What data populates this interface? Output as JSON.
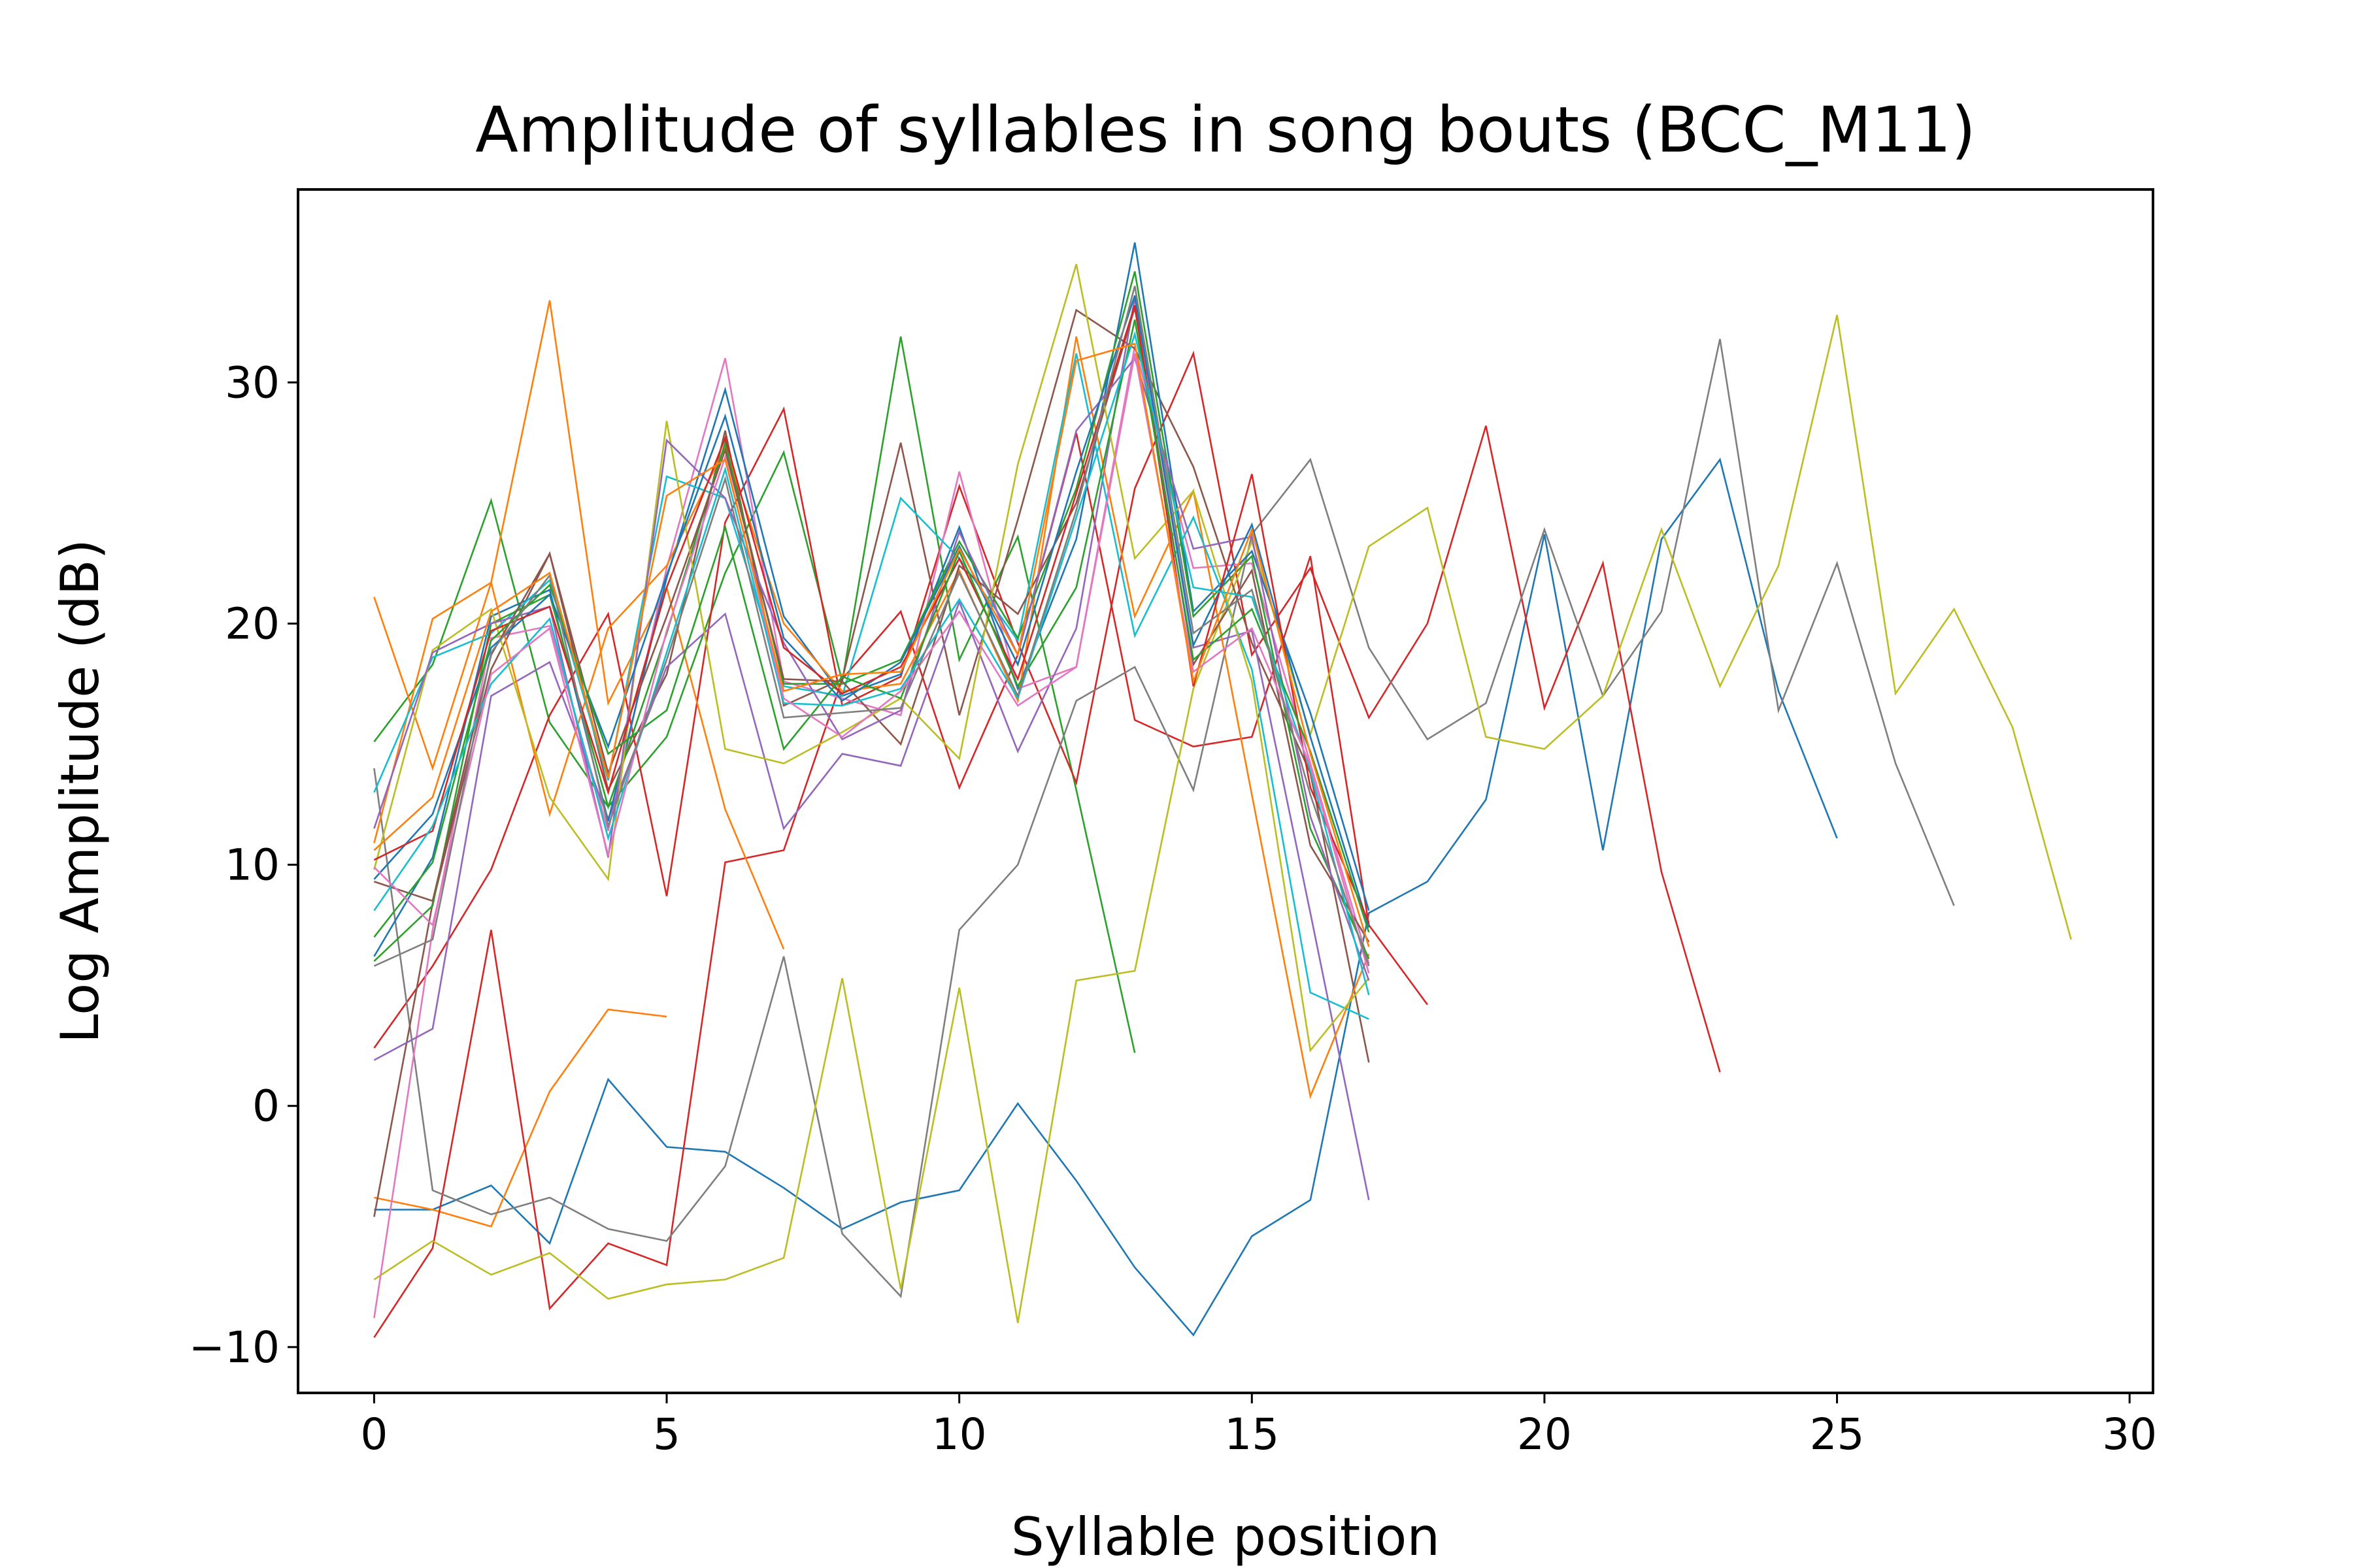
{
  "chart_data": {
    "type": "line",
    "title": "Amplitude of syllables in song bouts (BCC_M11)",
    "xlabel": "Syllable position",
    "ylabel": "Log Amplitude (dB)",
    "xlim": [
      -1.3,
      30.4
    ],
    "ylim": [
      -11.9,
      38.0
    ],
    "xticks": [
      0,
      5,
      10,
      15,
      20,
      25,
      30
    ],
    "yticks": [
      -10,
      0,
      10,
      20,
      30
    ],
    "xtick_labels": [
      "0",
      "5",
      "10",
      "15",
      "20",
      "25",
      "30"
    ],
    "ytick_labels": [
      "−10",
      "0",
      "10",
      "20",
      "30"
    ],
    "grid": false,
    "legend": "none",
    "colors": [
      "#1f77b4",
      "#ff7f0e",
      "#2ca02c",
      "#d62728",
      "#9467bd",
      "#8c564b",
      "#e377c2",
      "#7f7f7f",
      "#bcbd22",
      "#17becf"
    ],
    "series": [
      {
        "color": "#1f77b4",
        "x": [
          0,
          1,
          2,
          3,
          4,
          5,
          6,
          7,
          8,
          9,
          10,
          11,
          12,
          13,
          14,
          15,
          16,
          17,
          18,
          19,
          20,
          21,
          22,
          23,
          24,
          25
        ],
        "values": [
          -4.3,
          -4.3,
          -3.3,
          -5.7,
          1.1,
          -1.7,
          -1.9,
          -3.4,
          -5.1,
          -4.0,
          -3.5,
          0.1,
          -3.1,
          -6.7,
          -9.5,
          -5.4,
          -3.9,
          8.0,
          9.3,
          12.7,
          23.7,
          10.6,
          23.5,
          26.8,
          17.2,
          11.1
        ]
      },
      {
        "color": "#ff7f0e",
        "x": [
          0,
          1,
          2,
          3,
          4,
          5
        ],
        "values": [
          -3.8,
          -4.3,
          -5.0,
          0.6,
          4.0,
          3.7
        ]
      },
      {
        "color": "#2ca02c",
        "x": [
          0,
          1,
          2,
          3,
          4,
          5,
          6,
          7,
          8,
          9,
          10,
          11,
          12,
          13
        ],
        "values": [
          15.1,
          18.3,
          25.1,
          15.9,
          12.4,
          15.3,
          22.1,
          27.1,
          17.6,
          31.9,
          18.5,
          23.6,
          13.1,
          2.2
        ]
      },
      {
        "color": "#d62728",
        "x": [
          0,
          1,
          2,
          3,
          4,
          5,
          6,
          7,
          8,
          9,
          10,
          11,
          12,
          13,
          14,
          15,
          16,
          17,
          18
        ],
        "values": [
          -9.6,
          -5.9,
          7.3,
          -8.4,
          -5.7,
          -6.6,
          10.1,
          10.6,
          17.7,
          20.5,
          13.2,
          18.7,
          27.9,
          16.0,
          14.9,
          15.3,
          22.8,
          7.5,
          4.2
        ]
      },
      {
        "color": "#d62728",
        "x": [
          0,
          1,
          2,
          3,
          4,
          5,
          6,
          7,
          8,
          9,
          10,
          11,
          12,
          13,
          14,
          15,
          16,
          17,
          18,
          19,
          20,
          21,
          22,
          23
        ],
        "values": [
          2.4,
          5.8,
          9.8,
          16.2,
          20.4,
          8.7,
          24.2,
          28.9,
          16.6,
          17.8,
          25.7,
          19.2,
          13.4,
          25.6,
          31.2,
          18.7,
          22.3,
          16.1,
          20.0,
          28.2,
          16.5,
          22.5,
          9.7,
          1.4
        ]
      },
      {
        "color": "#7f7f7f",
        "x": [
          0,
          1,
          2,
          3,
          4,
          5,
          6,
          7,
          8,
          9,
          10,
          11,
          12,
          13,
          14,
          15,
          16,
          17,
          18,
          19,
          20,
          21,
          22,
          23,
          24,
          25,
          26,
          27
        ],
        "values": [
          14.0,
          -3.5,
          -4.5,
          -3.8,
          -5.1,
          -5.6,
          -2.5,
          6.2,
          -5.3,
          -7.9,
          7.3,
          10.0,
          16.8,
          18.2,
          13.1,
          23.7,
          26.8,
          19.0,
          15.2,
          16.7,
          23.9,
          17.0,
          20.5,
          31.8,
          16.4,
          22.5,
          14.2,
          8.3
        ]
      },
      {
        "color": "#bcbd22",
        "x": [
          0,
          1,
          2,
          3,
          4,
          5,
          6,
          7,
          8,
          9,
          10,
          11,
          12,
          13,
          14,
          15,
          16,
          17,
          18,
          19,
          20,
          21,
          22,
          23,
          24,
          25,
          26,
          27,
          28,
          29
        ],
        "values": [
          -7.2,
          -5.6,
          -7.0,
          -6.1,
          -8.0,
          -7.4,
          -7.2,
          -6.3,
          5.3,
          -7.6,
          4.9,
          -9.0,
          5.2,
          5.6,
          17.3,
          23.4,
          15.4,
          23.2,
          24.8,
          15.3,
          14.8,
          17.0,
          23.9,
          17.4,
          22.4,
          32.8,
          17.1,
          20.6,
          15.7,
          6.9
        ]
      },
      {
        "color": "#ff7f0e",
        "x": [
          0,
          1,
          2,
          3,
          4,
          5,
          6,
          7
        ],
        "values": [
          21.1,
          14.0,
          21.7,
          33.4,
          16.7,
          21.5,
          12.3,
          6.5
        ]
      },
      {
        "color": "#e377c2",
        "x": [
          0,
          1,
          2,
          3,
          4,
          5,
          6,
          7,
          8,
          9,
          10,
          11,
          12,
          13,
          14,
          15,
          16,
          17
        ],
        "values": [
          -8.8,
          7.3,
          19.4,
          19.9,
          11.4,
          22.3,
          31.0,
          17.6,
          16.9,
          16.2,
          26.3,
          17.3,
          18.2,
          31.5,
          22.3,
          22.5,
          14.2,
          5.9
        ]
      },
      {
        "color": "#8c564b",
        "x": [
          0,
          1,
          2,
          3,
          4,
          5,
          6,
          7,
          8,
          9,
          10,
          11,
          12,
          13,
          14,
          15,
          16,
          17
        ],
        "values": [
          -4.6,
          8.4,
          18.1,
          22.9,
          13.1,
          17.9,
          28.0,
          16.6,
          17.7,
          27.5,
          16.2,
          24.3,
          33.0,
          31.4,
          26.5,
          19.2,
          13.8,
          1.8
        ]
      },
      {
        "color": "#9467bd",
        "x": [
          0,
          1,
          2,
          3,
          4,
          5,
          6,
          7,
          8,
          9,
          10,
          11,
          12,
          13,
          14,
          15,
          16,
          17
        ],
        "values": [
          1.9,
          3.2,
          17.0,
          18.4,
          11.9,
          18.2,
          20.4,
          11.5,
          14.6,
          14.1,
          20.9,
          14.7,
          19.8,
          33.5,
          19.0,
          19.7,
          8.0,
          -3.9
        ]
      },
      {
        "color": "#1f77b4",
        "x": [
          0,
          1,
          2,
          3,
          4,
          5,
          6,
          7,
          8,
          9,
          10,
          11,
          12,
          13,
          14,
          15,
          16,
          17
        ],
        "values": [
          6.2,
          10.3,
          20.3,
          21.4,
          11.8,
          21.9,
          29.7,
          20.3,
          17.0,
          17.9,
          24.0,
          17.3,
          23.5,
          35.8,
          20.5,
          23.0,
          16.3,
          8.1
        ]
      },
      {
        "color": "#ff7f0e",
        "x": [
          0,
          1,
          2,
          3,
          4,
          5,
          6,
          7,
          8,
          9,
          10,
          11,
          12,
          13,
          14,
          15,
          16,
          17
        ],
        "values": [
          10.9,
          20.2,
          21.7,
          12.1,
          19.8,
          22.4,
          27.3,
          20.0,
          17.2,
          17.5,
          22.2,
          16.8,
          31.9,
          20.3,
          25.5,
          12.9,
          0.4,
          6.3
        ]
      },
      {
        "color": "#17becf",
        "x": [
          0,
          1,
          2,
          3,
          4,
          5,
          6,
          7,
          8,
          9,
          10,
          11,
          12,
          13,
          14,
          15,
          16,
          17
        ],
        "values": [
          13.0,
          18.6,
          19.6,
          21.8,
          13.5,
          26.1,
          25.2,
          17.4,
          17.0,
          25.2,
          22.7,
          19.3,
          31.2,
          19.5,
          24.4,
          18.1,
          4.7,
          3.6
        ]
      },
      {
        "color": "#2ca02c",
        "x": [
          0,
          1,
          2,
          3,
          4,
          5,
          6,
          7,
          8,
          9,
          10,
          11,
          12,
          13,
          14,
          15,
          16,
          17
        ],
        "values": [
          6.0,
          8.3,
          20.0,
          21.2,
          12.4,
          19.6,
          27.5,
          17.5,
          17.5,
          18.5,
          23.4,
          19.4,
          25.6,
          34.6,
          20.3,
          22.8,
          11.5,
          6.1
        ]
      },
      {
        "color": "#8c564b",
        "x": [
          0,
          1,
          2,
          3,
          4,
          5,
          6,
          7,
          8,
          9,
          10,
          11,
          12,
          13,
          14,
          15,
          16,
          17
        ],
        "values": [
          9.3,
          8.5,
          18.7,
          22.9,
          13.8,
          20.3,
          27.2,
          17.7,
          17.6,
          15.0,
          22.4,
          20.4,
          25.0,
          33.1,
          18.3,
          22.2,
          10.8,
          6.8
        ]
      },
      {
        "color": "#bcbd22",
        "x": [
          0,
          1,
          2,
          3,
          4,
          5,
          6,
          7,
          8,
          9,
          10,
          11,
          12,
          13,
          14,
          15,
          16,
          17
        ],
        "values": [
          9.8,
          18.9,
          20.6,
          12.8,
          9.4,
          28.4,
          14.8,
          14.2,
          15.5,
          16.9,
          14.4,
          26.6,
          34.9,
          22.7,
          25.5,
          17.6,
          2.3,
          5.3
        ]
      },
      {
        "color": "#9467bd",
        "x": [
          0,
          1,
          2,
          3,
          4,
          5,
          6,
          7,
          8,
          9,
          10,
          11,
          12,
          13,
          14,
          15,
          16,
          17
        ],
        "values": [
          11.5,
          18.8,
          20.0,
          20.7,
          10.3,
          27.6,
          25.2,
          19.2,
          15.2,
          16.4,
          23.8,
          18.7,
          28.0,
          31.0,
          23.1,
          23.6,
          12.0,
          5.2
        ]
      },
      {
        "color": "#1f77b4",
        "x": [
          0,
          1,
          2,
          3,
          4,
          5,
          6,
          7,
          8,
          9,
          10,
          11,
          12,
          13,
          14,
          15,
          16,
          17
        ],
        "values": [
          9.4,
          12.1,
          19.0,
          21.2,
          14.9,
          22.0,
          28.6,
          19.4,
          16.8,
          18.4,
          23.2,
          18.3,
          26.3,
          33.6,
          19.1,
          24.1,
          15.3,
          7.4
        ]
      },
      {
        "color": "#d62728",
        "x": [
          0,
          1,
          2,
          3,
          4,
          5,
          6,
          7,
          8,
          9,
          10,
          11,
          12,
          13,
          14,
          15,
          16,
          17
        ],
        "values": [
          10.2,
          11.4,
          19.7,
          20.7,
          13.0,
          21.5,
          27.7,
          19.0,
          17.1,
          18.2,
          22.7,
          17.7,
          25.4,
          33.2,
          17.4,
          26.2,
          13.2,
          7.6
        ]
      },
      {
        "color": "#2ca02c",
        "x": [
          0,
          1,
          2,
          3,
          4,
          5,
          6,
          7,
          8,
          9,
          10,
          11,
          12,
          13,
          14,
          15,
          16,
          17
        ],
        "values": [
          7.0,
          10.1,
          19.3,
          21.6,
          14.6,
          16.4,
          24.0,
          14.8,
          17.8,
          16.9,
          23.0,
          17.4,
          21.5,
          32.6,
          18.5,
          20.6,
          14.7,
          7.2
        ]
      },
      {
        "color": "#17becf",
        "x": [
          0,
          1,
          2,
          3,
          4,
          5,
          6,
          7,
          8,
          9,
          10,
          11,
          12,
          13,
          14,
          15,
          16,
          17
        ],
        "values": [
          8.1,
          11.6,
          17.5,
          20.2,
          11.1,
          18.8,
          26.4,
          16.7,
          16.6,
          17.3,
          21.0,
          16.9,
          24.4,
          32.0,
          21.5,
          21.1,
          13.9,
          4.6
        ]
      },
      {
        "color": "#e377c2",
        "x": [
          0,
          1,
          2,
          3,
          4,
          5,
          6,
          7,
          8,
          9,
          10,
          11,
          12,
          13,
          14,
          15,
          16,
          17
        ],
        "values": [
          9.9,
          7.5,
          17.9,
          19.8,
          10.4,
          19.7,
          26.9,
          16.9,
          15.3,
          17.2,
          20.5,
          16.6,
          18.2,
          31.2,
          18.0,
          19.8,
          14.1,
          5.5
        ]
      },
      {
        "color": "#7f7f7f",
        "x": [
          0,
          1,
          2,
          3,
          4,
          5,
          6,
          7,
          8,
          9,
          10,
          11,
          12,
          13,
          14,
          15,
          16,
          17
        ],
        "values": [
          5.8,
          6.9,
          18.8,
          22.0,
          11.6,
          18.5,
          26.0,
          16.1,
          16.3,
          16.5,
          22.1,
          17.0,
          24.7,
          34.0,
          19.6,
          21.4,
          12.9,
          5.8
        ]
      },
      {
        "color": "#ff7f0e",
        "x": [
          0,
          1,
          2,
          3,
          4,
          5,
          6,
          7,
          8,
          9,
          10,
          11,
          12,
          13,
          14,
          15,
          16,
          17
        ],
        "values": [
          10.6,
          12.8,
          20.5,
          22.1,
          13.6,
          25.3,
          26.8,
          17.2,
          17.9,
          18.0,
          23.1,
          18.7,
          30.9,
          31.6,
          17.6,
          23.9,
          14.6,
          6.6
        ]
      }
    ]
  }
}
